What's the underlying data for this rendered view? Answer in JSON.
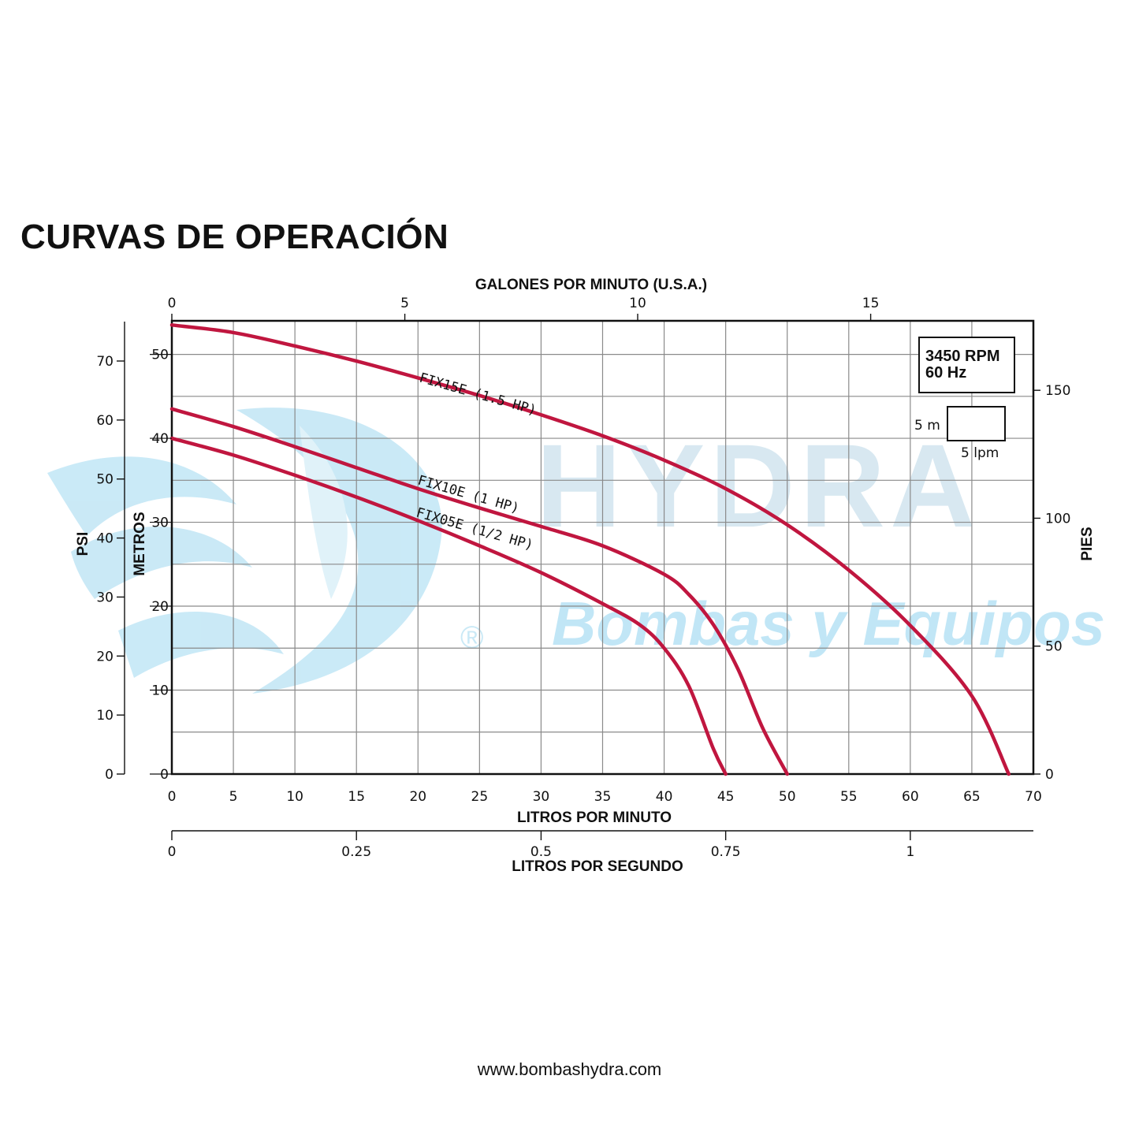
{
  "page": {
    "title": "CURVAS DE OPERACIÓN",
    "footer_url": "www.bombashydra.com"
  },
  "watermark": {
    "brand": "HYDRA",
    "tagline": "Bombas y Equipos",
    "registered": "®"
  },
  "info_box": {
    "rpm": "3450 RPM",
    "hz": "60 Hz",
    "scale_height": "5 m",
    "scale_width": "5 lpm"
  },
  "colors": {
    "curve": "#c0163f",
    "grid": "#8a8a8a",
    "watermark": "#9fd8f0"
  },
  "chart_data": {
    "type": "line",
    "title": "CURVAS DE OPERACIÓN",
    "xlabel": "LITROS POR MINUTO",
    "ylabel": "METROS",
    "xlim": [
      0,
      70
    ],
    "ylim": [
      0,
      54
    ],
    "x_ticks": [
      0,
      5,
      10,
      15,
      20,
      25,
      30,
      35,
      40,
      45,
      50,
      55,
      60,
      65,
      70
    ],
    "y_ticks": [
      0,
      10,
      20,
      30,
      40,
      50
    ],
    "grid": true,
    "top_axis": {
      "label": "GALONES POR MINUTO (U.S.A.)",
      "ticks": [
        "0",
        "5",
        "10",
        "15"
      ],
      "values_lpm": [
        0,
        18.93,
        37.85,
        56.78
      ]
    },
    "right_axis": {
      "label": "PIES",
      "ticks": [
        "0",
        "50",
        "100",
        "150"
      ],
      "values_m": [
        0,
        15.24,
        30.48,
        45.72
      ]
    },
    "left_axis": {
      "label": "PSI",
      "ticks": [
        "0",
        "10",
        "20",
        "30",
        "40",
        "50",
        "60",
        "70"
      ],
      "values_m": [
        0,
        7.03,
        14.06,
        21.09,
        28.12,
        35.15,
        42.18,
        49.21
      ]
    },
    "bottom_axis": {
      "label": "LITROS POR SEGUNDO",
      "ticks": [
        "0",
        "0.25",
        "0.5",
        "0.75",
        "1"
      ],
      "values_lpm": [
        0,
        15,
        30,
        45,
        60
      ]
    },
    "series": [
      {
        "name": "FIX15E (1.5 HP)",
        "x": [
          0,
          5,
          10,
          15,
          20,
          25,
          30,
          35,
          40,
          45,
          50,
          55,
          60,
          65,
          68
        ],
        "y": [
          53.5,
          52.6,
          51.0,
          49.2,
          47.2,
          45.1,
          42.8,
          40.3,
          37.4,
          34.0,
          29.7,
          24.3,
          17.7,
          9.3,
          0
        ]
      },
      {
        "name": "FIX10E (1 HP)",
        "x": [
          0,
          5,
          10,
          15,
          20,
          25,
          30,
          35,
          40,
          42,
          44,
          46,
          48,
          50
        ],
        "y": [
          43.5,
          41.4,
          39.0,
          36.5,
          34.0,
          31.7,
          29.5,
          27.2,
          23.8,
          21.4,
          17.8,
          12.5,
          5.5,
          0
        ]
      },
      {
        "name": "FIX05E (1/2 HP)",
        "x": [
          0,
          5,
          10,
          15,
          20,
          25,
          30,
          35,
          38,
          40,
          42,
          44,
          45
        ],
        "y": [
          40.0,
          38.0,
          35.6,
          33.0,
          30.2,
          27.2,
          24.0,
          20.3,
          17.8,
          15.0,
          10.5,
          3.0,
          0
        ]
      }
    ]
  }
}
